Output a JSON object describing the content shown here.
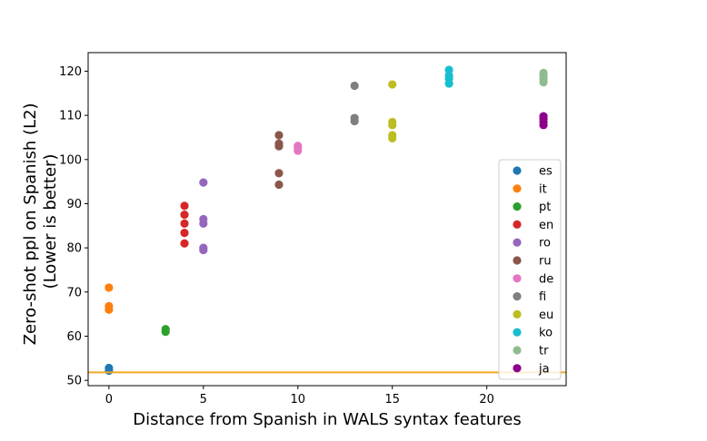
{
  "chart_data": {
    "type": "scatter",
    "xlabel": "Distance from Spanish in WALS syntax features",
    "ylabel_lines": [
      "Zero-shot ppl on Spanish (L2)",
      "(Lower is better)"
    ],
    "xlim": [
      -1.1,
      24.2
    ],
    "ylim": [
      48.8,
      124.2
    ],
    "xticks": [
      0,
      5,
      10,
      15,
      20
    ],
    "yticks": [
      50,
      60,
      70,
      80,
      90,
      100,
      110,
      120
    ],
    "grid": false,
    "legend_position": "right",
    "reference_line": {
      "y": 51.8,
      "color": "#f5a623"
    },
    "series": [
      {
        "name": "es",
        "color": "#1f77b4",
        "points": [
          [
            0,
            52.2
          ],
          [
            0,
            52.8
          ]
        ]
      },
      {
        "name": "it",
        "color": "#ff7f0e",
        "points": [
          [
            0,
            66.0
          ],
          [
            0,
            66.8
          ],
          [
            0,
            71.0
          ]
        ]
      },
      {
        "name": "pt",
        "color": "#2ca02c",
        "points": [
          [
            3,
            61.0
          ],
          [
            3,
            61.6
          ]
        ]
      },
      {
        "name": "en",
        "color": "#d62728",
        "points": [
          [
            4,
            81.0
          ],
          [
            4,
            83.4
          ],
          [
            4,
            85.5
          ],
          [
            4,
            87.5
          ],
          [
            4,
            89.5
          ]
        ]
      },
      {
        "name": "ro",
        "color": "#9467bd",
        "points": [
          [
            5,
            79.5
          ],
          [
            5,
            80.0
          ],
          [
            5,
            85.5
          ],
          [
            5,
            86.5
          ],
          [
            5,
            94.8
          ]
        ]
      },
      {
        "name": "ru",
        "color": "#8c564b",
        "points": [
          [
            9,
            94.3
          ],
          [
            9,
            96.9
          ],
          [
            9,
            103.0
          ],
          [
            9,
            103.6
          ],
          [
            9,
            105.5
          ]
        ]
      },
      {
        "name": "de",
        "color": "#e377c2",
        "points": [
          [
            10,
            102.0
          ],
          [
            10,
            102.6
          ],
          [
            10,
            103.1
          ]
        ]
      },
      {
        "name": "fi",
        "color": "#7f7f7f",
        "points": [
          [
            13,
            108.7
          ],
          [
            13,
            109.4
          ],
          [
            13,
            116.7
          ]
        ]
      },
      {
        "name": "eu",
        "color": "#bcbd22",
        "points": [
          [
            15,
            104.8
          ],
          [
            15,
            105.5
          ],
          [
            15,
            107.8
          ],
          [
            15,
            108.5
          ],
          [
            15,
            117.0
          ]
        ]
      },
      {
        "name": "ko",
        "color": "#17becf",
        "points": [
          [
            18,
            117.2
          ],
          [
            18,
            118.3
          ],
          [
            18,
            119.0
          ],
          [
            18,
            120.3
          ]
        ]
      },
      {
        "name": "tr",
        "color": "#8fbc8f",
        "points": [
          [
            23,
            117.5
          ],
          [
            23,
            118.2
          ],
          [
            23,
            119.0
          ],
          [
            23,
            119.6
          ]
        ]
      },
      {
        "name": "ja",
        "color": "#8b008b",
        "points": [
          [
            23,
            107.8
          ],
          [
            23,
            108.5
          ],
          [
            23,
            109.2
          ],
          [
            23,
            109.8
          ]
        ]
      }
    ]
  }
}
